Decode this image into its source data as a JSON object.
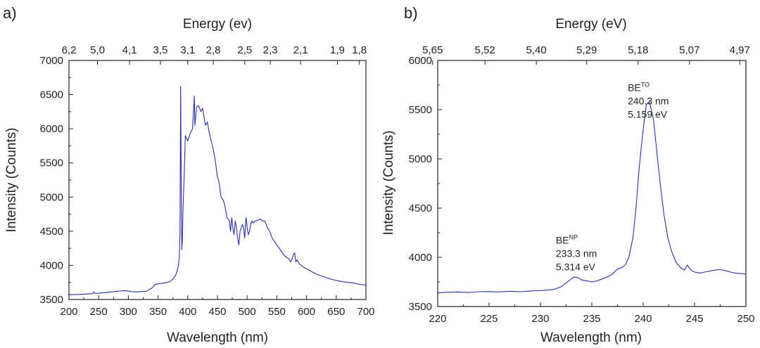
{
  "chart_data": [
    {
      "panel_label": "a)",
      "type": "line",
      "top_axis_title": "Energy (ev)",
      "top_ticks": [
        {
          "label": "6,2",
          "x": 200
        },
        {
          "label": "5,0",
          "x": 248
        },
        {
          "label": "4,1",
          "x": 302
        },
        {
          "label": "3,5",
          "x": 354
        },
        {
          "label": "3,1",
          "x": 400
        },
        {
          "label": "2,8",
          "x": 443
        },
        {
          "label": "2,5",
          "x": 496
        },
        {
          "label": "2,3",
          "x": 539
        },
        {
          "label": "2,1",
          "x": 590
        },
        {
          "label": "1,9",
          "x": 652
        },
        {
          "label": "1,8",
          "x": 689
        }
      ],
      "xlabel": "Wavelength (nm)",
      "ylabel": "Intensity (Counts)",
      "xlim": [
        200,
        700
      ],
      "ylim": [
        3500,
        7000
      ],
      "xticks": [
        200,
        250,
        300,
        350,
        400,
        450,
        500,
        550,
        600,
        650,
        700
      ],
      "yticks": [
        3500,
        4000,
        4500,
        5000,
        5500,
        6000,
        6500,
        7000
      ],
      "series": [
        {
          "name": "spectrum",
          "x": [
            200,
            220,
            240,
            242,
            244,
            260,
            280,
            295,
            310,
            330,
            340,
            345,
            350,
            360,
            370,
            375,
            380,
            384,
            386,
            387,
            388,
            389,
            390,
            391,
            392,
            394,
            396,
            398,
            400,
            402,
            405,
            408,
            410,
            411,
            412,
            413,
            415,
            418,
            420,
            422,
            425,
            428,
            430,
            433,
            436,
            440,
            443,
            446,
            450,
            453,
            456,
            460,
            463,
            466,
            470,
            472,
            474,
            476,
            478,
            480,
            482,
            484,
            486,
            488,
            490,
            492,
            494,
            496,
            498,
            499,
            500,
            502,
            504,
            506,
            508,
            510,
            514,
            518,
            522,
            526,
            530,
            534,
            538,
            542,
            546,
            550,
            554,
            558,
            562,
            566,
            570,
            573,
            576,
            578,
            580,
            582,
            584,
            588,
            594,
            600,
            610,
            620,
            630,
            640,
            650,
            660,
            670,
            680,
            690,
            700
          ],
          "y": [
            3570,
            3575,
            3585,
            3610,
            3590,
            3600,
            3620,
            3630,
            3610,
            3620,
            3670,
            3720,
            3730,
            3740,
            3760,
            3800,
            3860,
            3980,
            4150,
            4500,
            6620,
            5200,
            4230,
            4380,
            4800,
            5300,
            5900,
            5860,
            5820,
            5880,
            5950,
            6000,
            6300,
            6480,
            6050,
            6150,
            6320,
            6340,
            6300,
            6250,
            6300,
            6150,
            6050,
            6100,
            5950,
            5800,
            5700,
            5550,
            5300,
            5200,
            5000,
            4950,
            4850,
            4700,
            4650,
            4500,
            4700,
            4550,
            4450,
            4650,
            4550,
            4400,
            4300,
            4500,
            4550,
            4600,
            4550,
            4400,
            4700,
            4650,
            4550,
            4450,
            4500,
            4600,
            4650,
            4620,
            4650,
            4660,
            4680,
            4650,
            4650,
            4550,
            4500,
            4400,
            4350,
            4300,
            4250,
            4200,
            4150,
            4120,
            4100,
            4050,
            4100,
            4160,
            4180,
            4050,
            4080,
            4020,
            3980,
            3950,
            3900,
            3860,
            3830,
            3800,
            3780,
            3760,
            3750,
            3740,
            3720,
            3710
          ]
        }
      ]
    },
    {
      "panel_label": "b)",
      "type": "line",
      "top_axis_title": "Energy (eV)",
      "top_ticks": [
        {
          "label": "5,65",
          "x": 219.5
        },
        {
          "label": "5,52",
          "x": 224.6
        },
        {
          "label": "5,40",
          "x": 229.6
        },
        {
          "label": "5,29",
          "x": 234.5
        },
        {
          "label": "5,18",
          "x": 239.5
        },
        {
          "label": "5,07",
          "x": 244.5
        },
        {
          "label": "4,97",
          "x": 249.4
        }
      ],
      "xlabel": "Wavelength (nm)",
      "ylabel": "Intensity (Counts)",
      "xlim": [
        220,
        250
      ],
      "ylim": [
        3500,
        6000
      ],
      "xticks": [
        220,
        225,
        230,
        235,
        240,
        245,
        250
      ],
      "yticks": [
        3500,
        4000,
        4500,
        5000,
        5500,
        6000
      ],
      "annotations": [
        {
          "base": "BE",
          "sup": "TO",
          "line1": "240.3 nm",
          "line2": "5.159 eV",
          "x": 238.5,
          "y": 5690
        },
        {
          "base": "BE",
          "sup": "NP",
          "line1": "233.3 nm",
          "line2": "5.314 eV",
          "x": 231.5,
          "y": 4140
        }
      ],
      "series": [
        {
          "name": "spectrum",
          "x": [
            220,
            221,
            222,
            223,
            224,
            225,
            226,
            227,
            228,
            229,
            230,
            231,
            231.5,
            232,
            232.5,
            233,
            233.3,
            233.7,
            234,
            234.5,
            235,
            235.5,
            236,
            236.5,
            237,
            237.5,
            238,
            238.3,
            238.6,
            239,
            239.3,
            239.6,
            240,
            240.3,
            240.6,
            241,
            241.3,
            241.6,
            242,
            242.4,
            242.8,
            243.2,
            243.6,
            244,
            244.3,
            244.5,
            244.8,
            245,
            245.5,
            246,
            246.5,
            247,
            247.5,
            248,
            248.5,
            249,
            249.5,
            250
          ],
          "y": [
            3640,
            3645,
            3648,
            3642,
            3650,
            3652,
            3648,
            3655,
            3650,
            3658,
            3662,
            3670,
            3680,
            3700,
            3740,
            3780,
            3800,
            3790,
            3770,
            3760,
            3750,
            3760,
            3780,
            3800,
            3830,
            3880,
            3900,
            3930,
            4000,
            4200,
            4500,
            4900,
            5300,
            5550,
            5580,
            5400,
            5100,
            4800,
            4450,
            4200,
            4050,
            3950,
            3900,
            3870,
            3920,
            3890,
            3860,
            3850,
            3840,
            3850,
            3860,
            3870,
            3875,
            3865,
            3850,
            3840,
            3835,
            3830
          ]
        }
      ]
    }
  ]
}
